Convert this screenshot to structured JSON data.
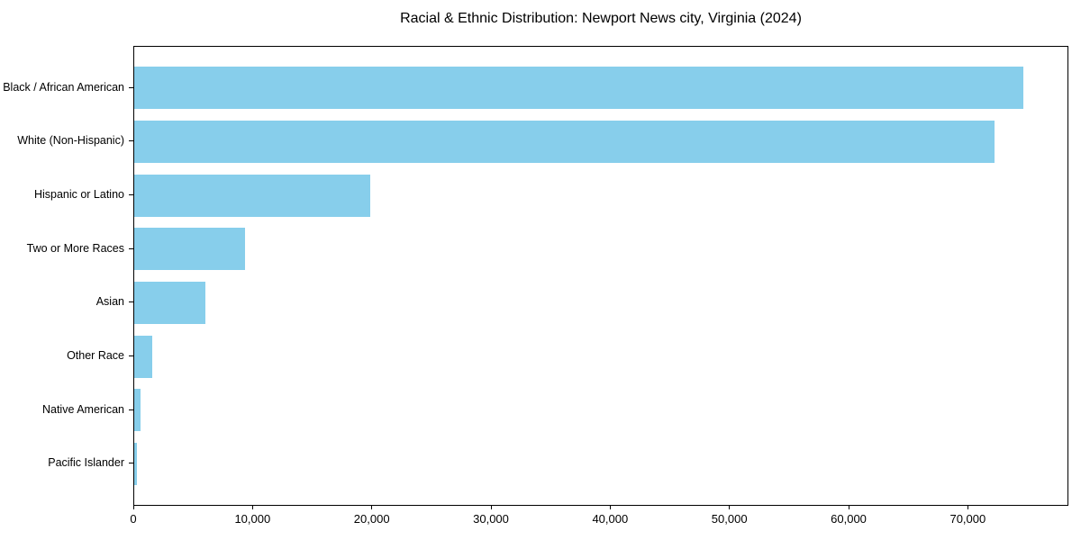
{
  "page": {
    "background": "#ffffff"
  },
  "chart_data": {
    "type": "bar",
    "orientation": "horizontal",
    "title": "Racial & Ethnic Distribution: Newport News city, Virginia (2024)",
    "categories": [
      "Black / African American",
      "White (Non-Hispanic)",
      "Hispanic or Latino",
      "Two or More Races",
      "Asian",
      "Other Race",
      "Native American",
      "Pacific Islander"
    ],
    "values": [
      74700,
      72300,
      19800,
      9300,
      6000,
      1500,
      500,
      200
    ],
    "xlabel": "",
    "ylabel": "",
    "xlim": [
      0,
      78435
    ],
    "xticks": [
      0,
      10000,
      20000,
      30000,
      40000,
      50000,
      60000,
      70000
    ],
    "xtick_labels": [
      "0",
      "10,000",
      "20,000",
      "30,000",
      "40,000",
      "50,000",
      "60,000",
      "70,000"
    ],
    "bar_color": "#87CEEB",
    "axis_color": "#000000",
    "text_color": "#000000",
    "background_color": "#ffffff",
    "grid": false,
    "legend": null
  }
}
